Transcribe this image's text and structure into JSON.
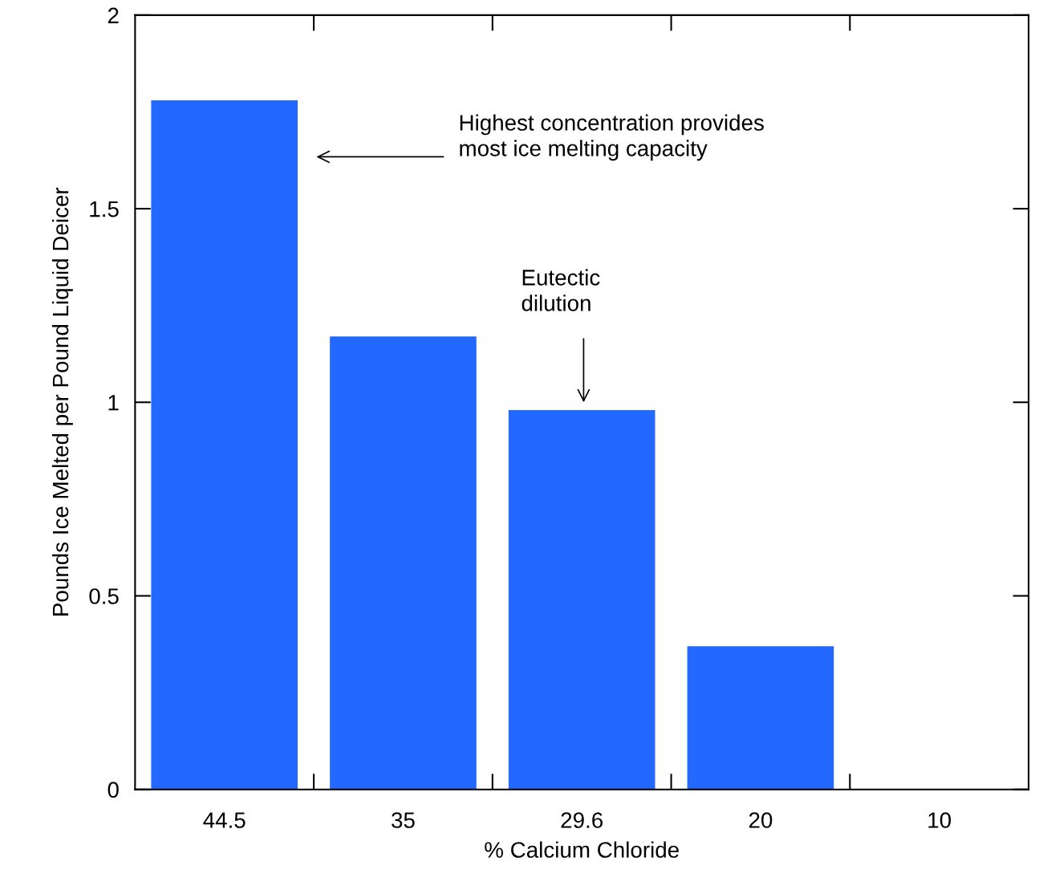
{
  "chart_data": {
    "type": "bar",
    "xlabel": "% Calcium Chloride",
    "ylabel": "Pounds Ice Melted per Pound Liquid Deicer",
    "categories": [
      "44.5",
      "35",
      "29.6",
      "20",
      "10"
    ],
    "values": [
      1.78,
      1.17,
      0.98,
      0.37,
      0
    ],
    "color": "#2369ff",
    "ylim": [
      0,
      2
    ],
    "yticks": [
      0,
      0.5,
      1,
      1.5,
      2
    ],
    "grid": false,
    "legend": false,
    "annotations": [
      "Highest concentration provides\nmost ice melting capacity",
      "Eutectic\ndilution"
    ]
  }
}
